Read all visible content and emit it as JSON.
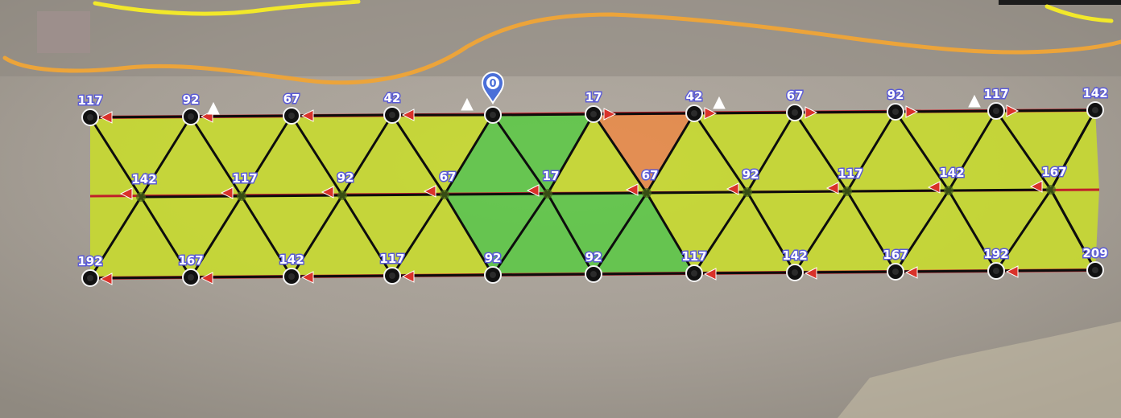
{
  "map": {
    "start_pin": {
      "label": "0",
      "icon": "location-pin-icon",
      "color": "#4a6fd8"
    },
    "node_rows": [
      {
        "name": "top",
        "labels": [
          "117",
          "92",
          "67",
          "42",
          "",
          "17",
          "42",
          "67",
          "92",
          "117",
          "142"
        ]
      },
      {
        "name": "middle",
        "labels": [
          "142",
          "117",
          "92",
          "67",
          "17",
          "67",
          "92",
          "117",
          "142",
          "167"
        ]
      },
      {
        "name": "bottom",
        "labels": [
          "192",
          "167",
          "142",
          "117",
          "92",
          "92",
          "117",
          "142",
          "167",
          "192",
          "209"
        ]
      }
    ],
    "colors": {
      "cell_default": "#c8dc2c",
      "cell_covered": "#5cc845",
      "cell_start": "#e98a48",
      "grid_line": "#0d0d0d",
      "boundary_line": "#c0202a",
      "contour_yellow": "#f2e82a",
      "contour_orange": "#eca43a",
      "label_outline": "#5b5bd6"
    }
  }
}
